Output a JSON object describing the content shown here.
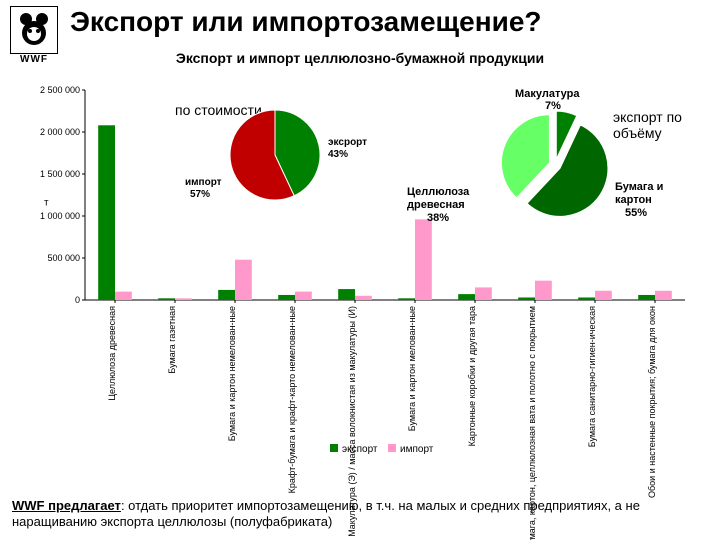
{
  "header": {
    "logo_text": "WWF",
    "title": "Экспорт или импортозамещение?",
    "subtitle": "Экспорт и импорт целлюлозно-бумажной продукции"
  },
  "footer": {
    "note_bold": "WWF предлагает",
    "note_rest": ": отдать приоритет импортозамещению, в т.ч. на малых и средних предприятиях, а не наращиванию экспорта целлюлозы (полуфабриката)"
  },
  "bar_chart": {
    "type": "grouped-bar",
    "y_axis_label": "т",
    "y_max": 2500000,
    "y_ticks": [
      0,
      500000,
      1000000,
      1500000,
      2000000,
      2500000
    ],
    "y_tick_labels": [
      "0",
      "500 000",
      "1 000 000",
      "1 500 000",
      "2 000 000",
      "2 500 000"
    ],
    "categories": [
      "Целлюлоза древесная",
      "Бумага газетная",
      "Бумага и картон немелован-ные",
      "Крафт-бумага и крафт-карто немелован-ные",
      "Макулатура (Э) / масса волокнистая из макулатуры (И)",
      "Бумага и картон мелован-ные",
      "Картонные коробки и другая тара",
      "Бумага, картон, целлюлозная вата и полотно с покрытием",
      "Бумага санитарно-гигиен-ическая",
      "Обои и настенные покрытия; бумага для окон"
    ],
    "series": {
      "export": {
        "label": "экспорт",
        "color": "#008000",
        "values": [
          2080000,
          20000,
          120000,
          60000,
          130000,
          20000,
          70000,
          30000,
          30000,
          60000
        ]
      },
      "import": {
        "label": "импорт",
        "color": "#ff99cc",
        "values": [
          100000,
          20000,
          480000,
          100000,
          50000,
          960000,
          150000,
          230000,
          110000,
          110000
        ]
      }
    },
    "subtitle": "по стоимости",
    "legend_marker_size": 8,
    "font_size_axis": 9
  },
  "pie_left": {
    "type": "pie",
    "slices": [
      {
        "label": "импорт",
        "pct": 57,
        "color": "#c00000",
        "label_text": "импорт 57%"
      },
      {
        "label": "экспорт",
        "pct": 43,
        "color": "#008000",
        "label_text": "эксрорт 43%"
      }
    ]
  },
  "pie_right": {
    "type": "pie",
    "subtitle": "экспорт по объёму",
    "slices": [
      {
        "label": "Макулатура",
        "pct": 7,
        "color": "#008000",
        "label_text": "Макулатура 7%"
      },
      {
        "label": "Целлюлоза древесная",
        "pct": 38,
        "color": "#66ff66",
        "label_text": "Целлюлоза древесная 38%"
      },
      {
        "label": "Бумага и картон",
        "pct": 55,
        "color": "#006600",
        "label_text": "Бумага и картон 55%"
      }
    ]
  },
  "colors": {
    "background": "#ffffff",
    "text": "#000000",
    "axis": "#000000"
  }
}
